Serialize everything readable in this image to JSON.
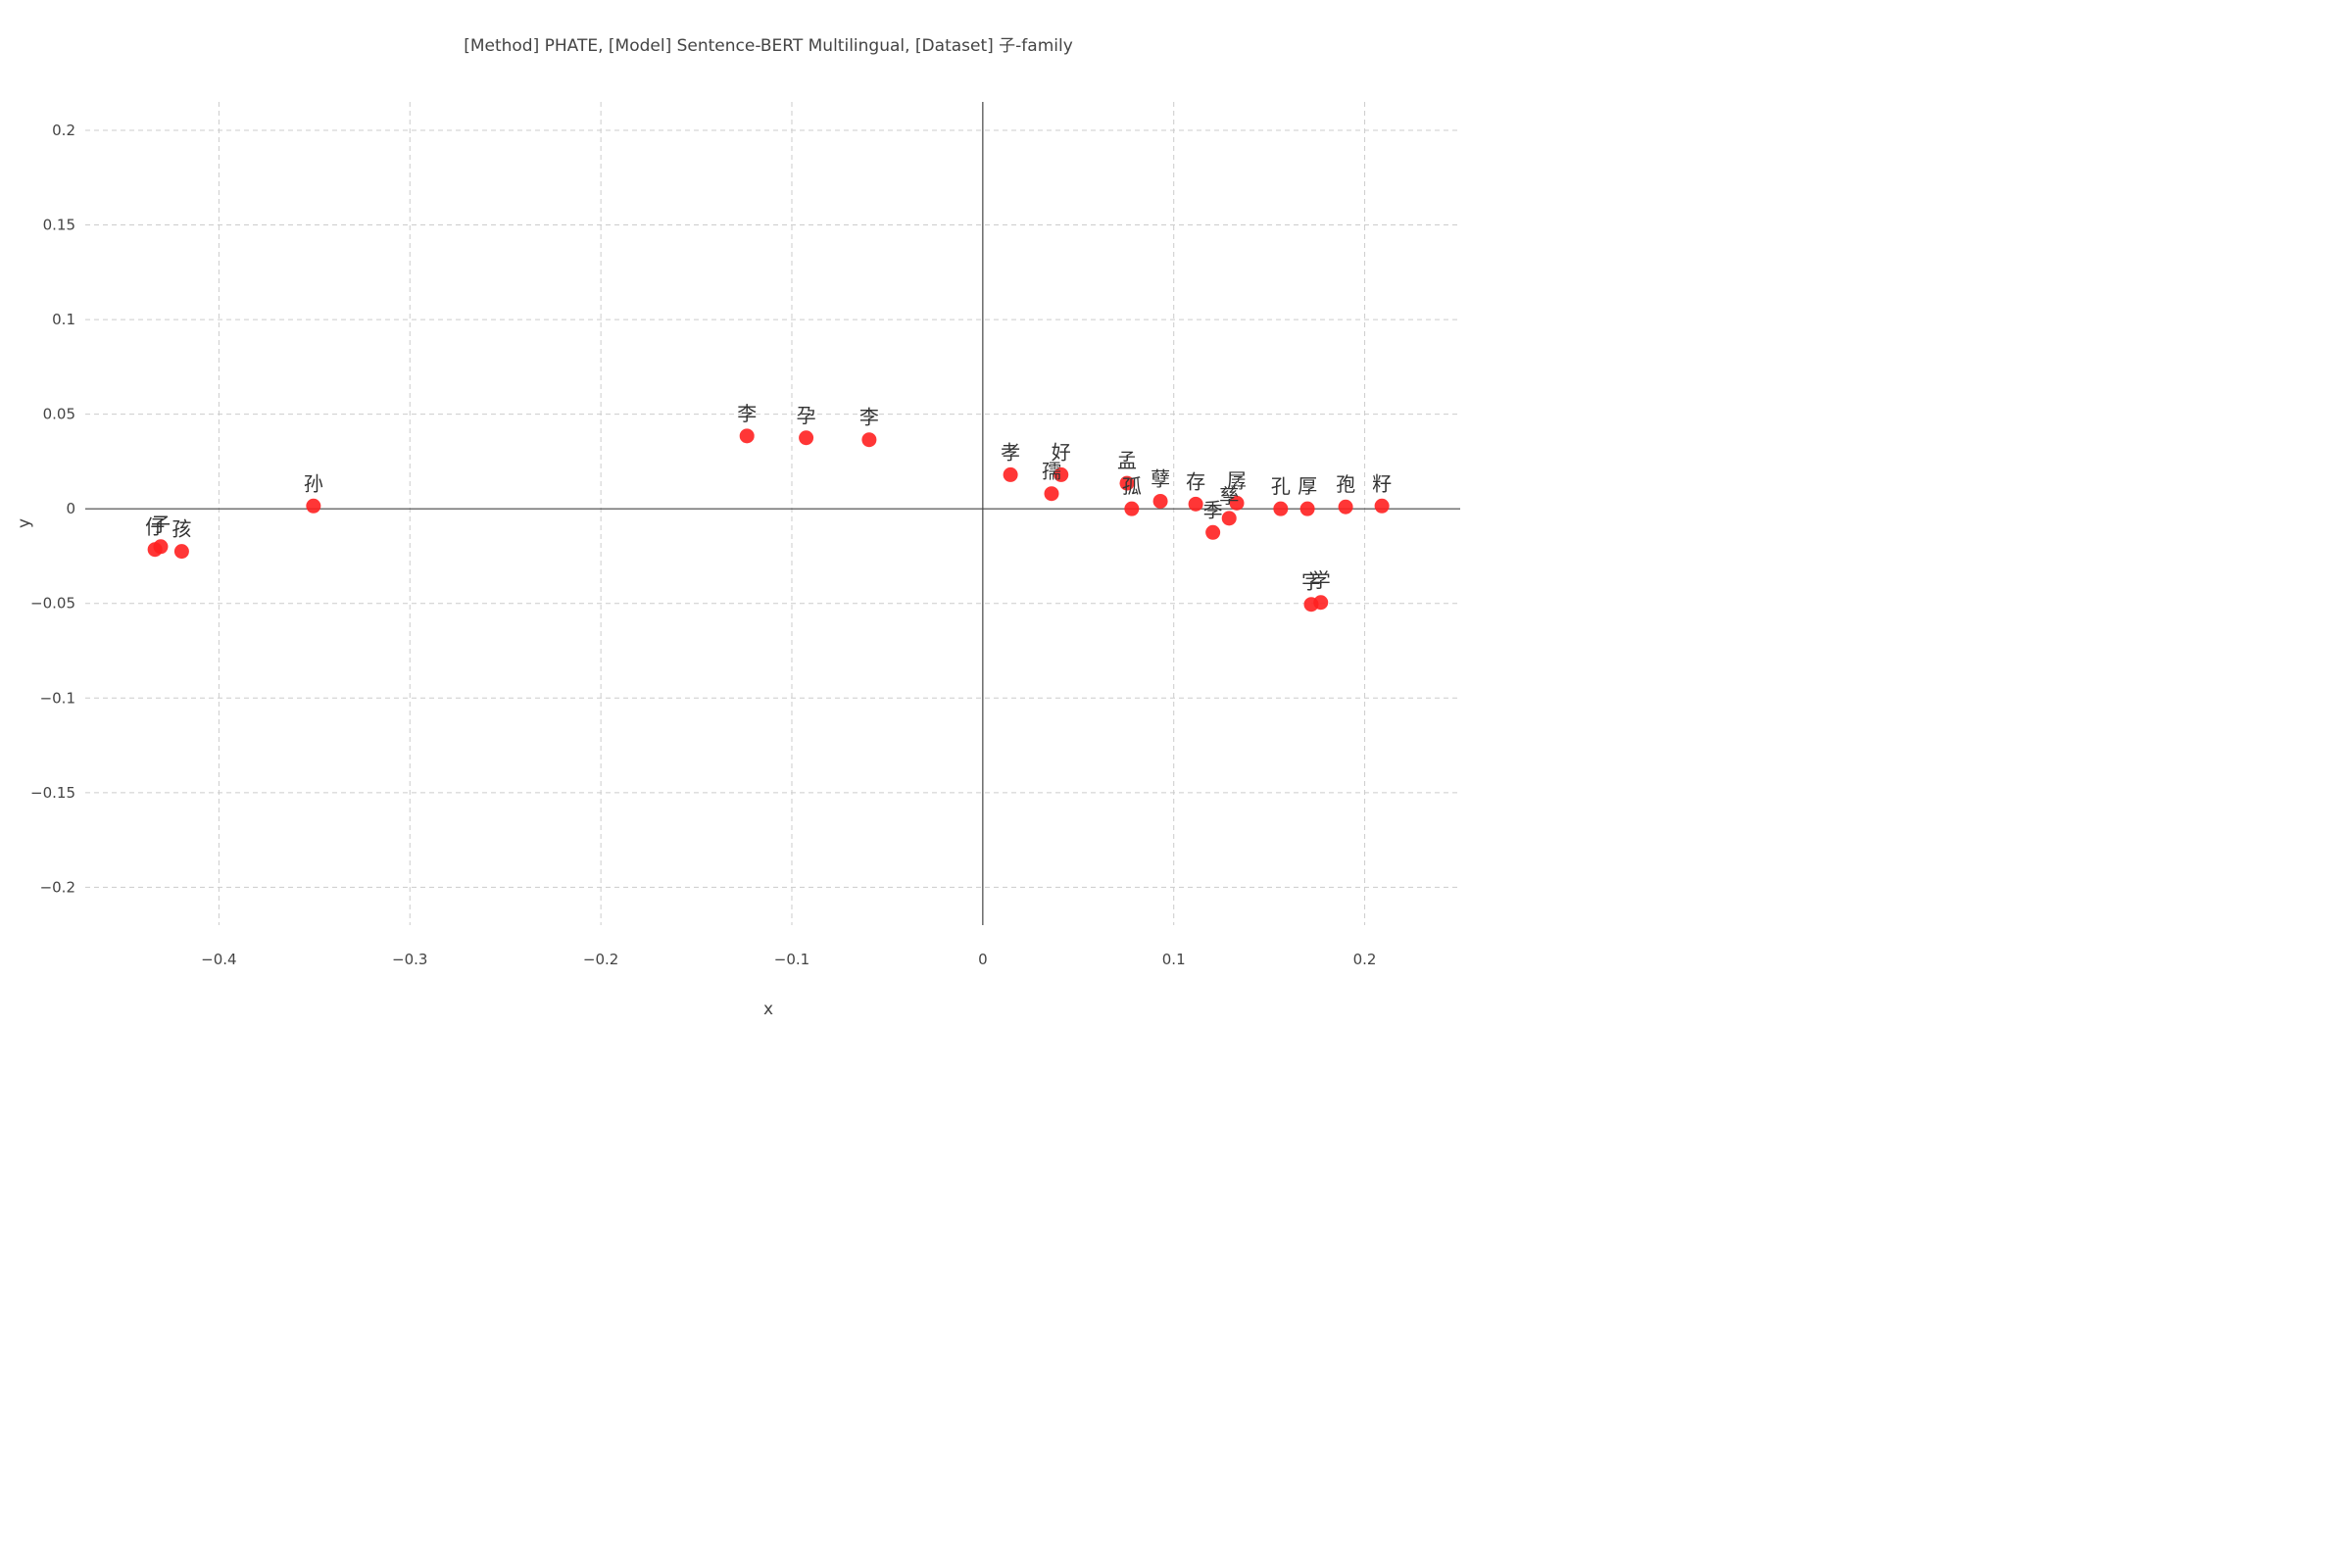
{
  "chart_data": {
    "type": "scatter",
    "title": "[Method] PHATE, [Model] Sentence-BERT Multilingual, [Dataset] 子-family",
    "xlabel": "x",
    "ylabel": "y",
    "xlim": [
      -0.47,
      0.25
    ],
    "ylim": [
      -0.22,
      0.215
    ],
    "grid": true,
    "x_ticks": [
      {
        "value": -0.4,
        "label": "−0.4"
      },
      {
        "value": -0.3,
        "label": "−0.3"
      },
      {
        "value": -0.2,
        "label": "−0.2"
      },
      {
        "value": -0.1,
        "label": "−0.1"
      },
      {
        "value": 0,
        "label": "0"
      },
      {
        "value": 0.1,
        "label": "0.1"
      },
      {
        "value": 0.2,
        "label": "0.2"
      }
    ],
    "y_ticks": [
      {
        "value": 0.2,
        "label": "0.2"
      },
      {
        "value": 0.15,
        "label": "0.15"
      },
      {
        "value": 0.1,
        "label": "0.1"
      },
      {
        "value": 0.05,
        "label": "0.05"
      },
      {
        "value": 0,
        "label": "0"
      },
      {
        "value": -0.05,
        "label": "−0.05"
      },
      {
        "value": -0.1,
        "label": "−0.1"
      },
      {
        "value": -0.15,
        "label": "−0.15"
      },
      {
        "value": -0.2,
        "label": "−0.2"
      }
    ],
    "marker_color": "#ff2020",
    "points": [
      {
        "label": "仔",
        "x": -0.4335,
        "y": -0.0215
      },
      {
        "label": "子",
        "x": -0.4305,
        "y": -0.02
      },
      {
        "label": "孩",
        "x": -0.4195,
        "y": -0.0225
      },
      {
        "label": "孙",
        "x": -0.3505,
        "y": 0.0015
      },
      {
        "label": "李",
        "x": -0.1235,
        "y": 0.0385
      },
      {
        "label": "孕",
        "x": -0.0925,
        "y": 0.0375
      },
      {
        "label": "李",
        "x": -0.0595,
        "y": 0.0365
      },
      {
        "label": "孝",
        "x": 0.0145,
        "y": 0.018
      },
      {
        "label": "孺",
        "x": 0.036,
        "y": 0.008
      },
      {
        "label": "好",
        "x": 0.041,
        "y": 0.018
      },
      {
        "label": "孟",
        "x": 0.0755,
        "y": 0.0135
      },
      {
        "label": "孤",
        "x": 0.078,
        "y": 0.0
      },
      {
        "label": "孽",
        "x": 0.093,
        "y": 0.004
      },
      {
        "label": "存",
        "x": 0.1115,
        "y": 0.0025
      },
      {
        "label": "季",
        "x": 0.1205,
        "y": -0.0125
      },
      {
        "label": "孳",
        "x": 0.129,
        "y": -0.005
      },
      {
        "label": "孱",
        "x": 0.133,
        "y": 0.003
      },
      {
        "label": "孔",
        "x": 0.156,
        "y": 0.0
      },
      {
        "label": "厚",
        "x": 0.17,
        "y": 0.0
      },
      {
        "label": "字",
        "x": 0.172,
        "y": -0.0505
      },
      {
        "label": "学",
        "x": 0.177,
        "y": -0.0495
      },
      {
        "label": "孢",
        "x": 0.19,
        "y": 0.001
      },
      {
        "label": "籽",
        "x": 0.209,
        "y": 0.0015
      }
    ]
  }
}
